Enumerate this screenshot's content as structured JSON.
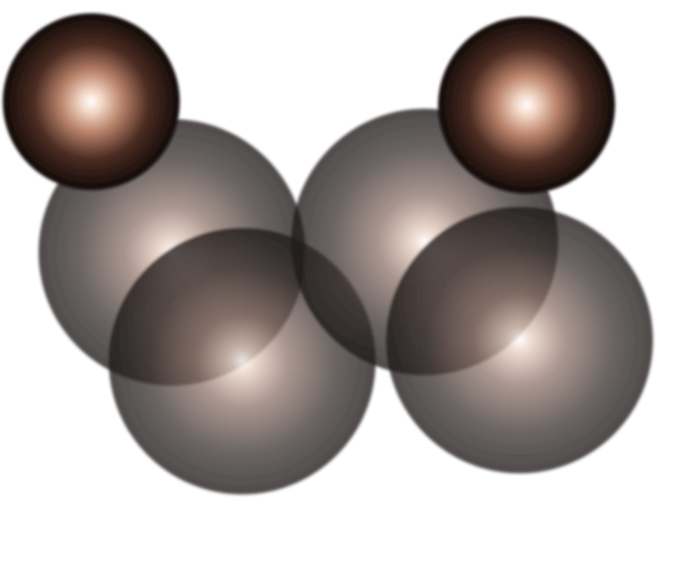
{
  "scene": {
    "background": "#ffffff",
    "description_items": [
      {
        "name": "orb",
        "kind": "opaque",
        "highlight": "#ffffff",
        "mid": "#c9a08a",
        "edge": "#1a0f0a"
      },
      {
        "name": "orb",
        "kind": "opaque",
        "highlight": "#ffffff",
        "mid": "#c9a08a",
        "edge": "#1a0f0a"
      },
      {
        "name": "orb",
        "kind": "translucent",
        "highlight": "#ffffff",
        "mid": "#a88a7c",
        "edge": "#2b2524"
      },
      {
        "name": "orb",
        "kind": "translucent",
        "highlight": "#ffffff",
        "mid": "#a88a7c",
        "edge": "#2b2524"
      },
      {
        "name": "orb",
        "kind": "translucent",
        "highlight": "#ffffff",
        "mid": "#a88a7c",
        "edge": "#2b2524"
      },
      {
        "name": "orb",
        "kind": "translucent",
        "highlight": "#ffffff",
        "mid": "#a88a7c",
        "edge": "#2b2524"
      }
    ]
  }
}
